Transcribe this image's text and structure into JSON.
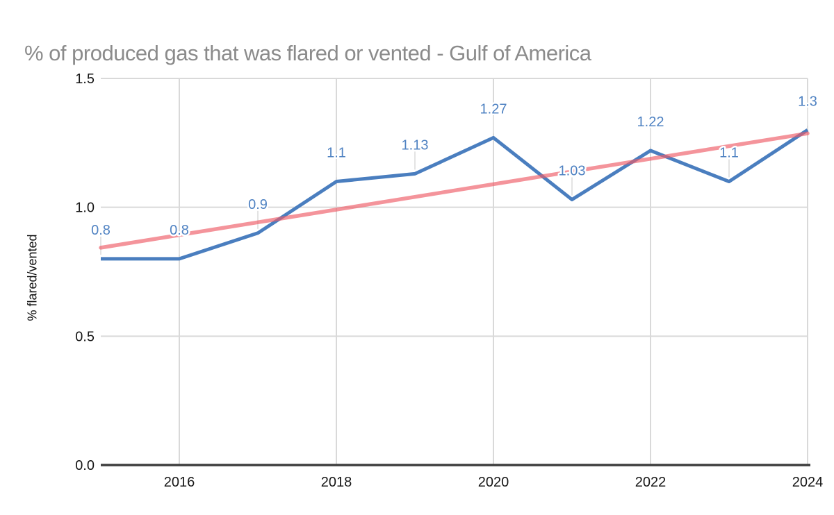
{
  "title": "% of produced gas that was flared or vented - Gulf of America",
  "y_axis_title": "% flared/vented",
  "chart_data": {
    "type": "line",
    "x": [
      2015,
      2016,
      2017,
      2018,
      2019,
      2020,
      2021,
      2022,
      2023,
      2024
    ],
    "series": [
      {
        "name": "% flared/vented",
        "values": [
          0.8,
          0.8,
          0.9,
          1.1,
          1.13,
          1.27,
          1.03,
          1.22,
          1.1,
          1.3
        ],
        "point_labels": [
          "0.8",
          "0.8",
          "0.9",
          "1.1",
          "1.13",
          "1.27",
          "1.03",
          "1.22",
          "1.1",
          "1.3"
        ]
      }
    ],
    "trendline": {
      "kind": "linear",
      "fit_of": "series-0"
    },
    "xlabel": "",
    "ylabel": "% flared/vented",
    "xlim": [
      2015,
      2024
    ],
    "ylim": [
      0,
      1.5
    ],
    "x_tick_labels": [
      "2016",
      "2018",
      "2020",
      "2022",
      "2024"
    ],
    "x_tick_values": [
      2016,
      2018,
      2020,
      2022,
      2024
    ],
    "y_tick_labels": [
      "0.0",
      "0.5",
      "1.0",
      "1.5"
    ],
    "y_tick_values": [
      0,
      0.5,
      1,
      1.5
    ],
    "grid": "on",
    "legend": "none",
    "colors": {
      "series_line": "#4a7ebf",
      "point_label_text": "#4f82c2",
      "trendline_stroke": "#ee5a66",
      "trendline_opacity": 0.65,
      "gridline": "#d9d9d9",
      "leader_line": "#e3e3e3",
      "baseline_axis": "#3d3d3d",
      "tick_label_text": "#161616",
      "title_text": "#8b8b8b",
      "background": "#ffffff"
    }
  }
}
